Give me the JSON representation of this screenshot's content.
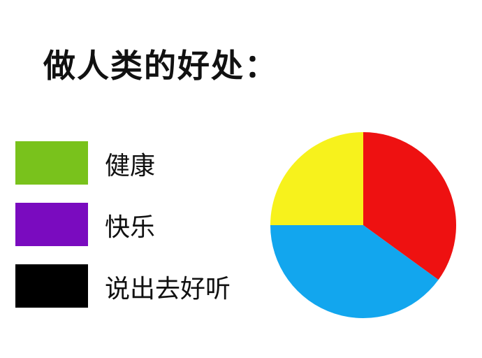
{
  "title": "做人类的好处：",
  "chart_data": {
    "type": "pie",
    "legend_position": "left",
    "legend": [
      {
        "label": "健康",
        "color": "#79c21c"
      },
      {
        "label": "快乐",
        "color": "#7a0bbf"
      },
      {
        "label": "说出去好听",
        "color": "#000000"
      }
    ],
    "slices": [
      {
        "value": 35,
        "color": "#ee1111"
      },
      {
        "value": 40,
        "color": "#12a6ee"
      },
      {
        "value": 25,
        "color": "#f7f21c"
      }
    ],
    "start_angle_deg": 0
  }
}
